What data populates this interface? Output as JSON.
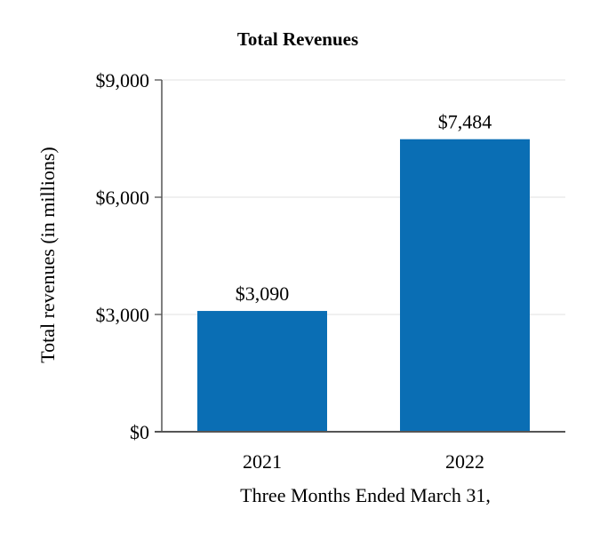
{
  "chart_data": {
    "type": "bar",
    "title": "Total Revenues",
    "xlabel": "Three Months Ended March 31,",
    "ylabel": "Total revenues (in millions)",
    "categories": [
      "2021",
      "2022"
    ],
    "values": [
      3090,
      7484
    ],
    "data_labels": [
      "$3,090",
      "$7,484"
    ],
    "ylim": [
      0,
      9000
    ],
    "yticks": [
      0,
      3000,
      6000,
      9000
    ],
    "ytick_labels": [
      "$0",
      "$3,000",
      "$6,000",
      "$9,000"
    ],
    "grid": true,
    "legend": "none",
    "colors": {
      "bar": "#0a6eb4",
      "grid": "#e6e6e6",
      "axis": "#555555"
    }
  }
}
